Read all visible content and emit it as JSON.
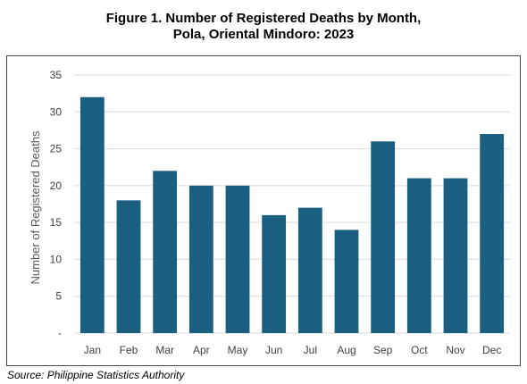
{
  "figure": {
    "title_line_1": "Figure 1. Number of Registered Deaths by Month,",
    "title_line_2": "Pola, Oriental Mindoro: 2023",
    "source": "Source: Philippine Statistics Authority"
  },
  "chart_data": {
    "type": "bar",
    "title": "Figure 1. Number of Registered Deaths by Month, Pola, Oriental Mindoro: 2023",
    "xlabel": "",
    "ylabel": "Number of Registered Deaths",
    "categories": [
      "Jan",
      "Feb",
      "Mar",
      "Apr",
      "May",
      "Jun",
      "Jul",
      "Aug",
      "Sep",
      "Oct",
      "Nov",
      "Dec"
    ],
    "values": [
      32,
      18,
      22,
      20,
      20,
      16,
      17,
      14,
      26,
      21,
      21,
      27
    ],
    "ylim": [
      0,
      35
    ],
    "yticks": [
      0,
      5,
      10,
      15,
      20,
      25,
      30,
      35
    ],
    "ytick_labels": [
      "-",
      "5",
      "10",
      "15",
      "20",
      "25",
      "30",
      "35"
    ],
    "grid": true,
    "legend": "none",
    "bar_color": "#1a5f80",
    "grid_color": "#d9d9d9"
  }
}
